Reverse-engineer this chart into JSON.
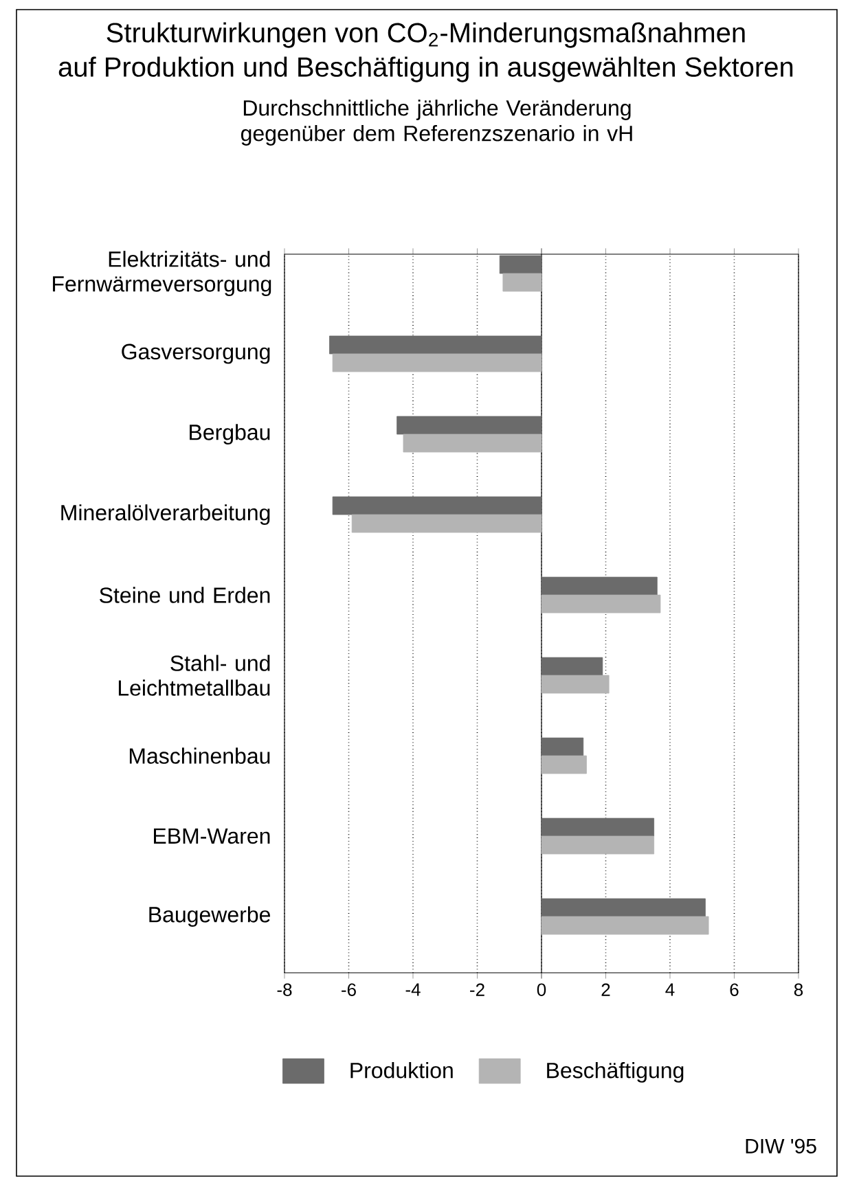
{
  "chart_data": {
    "type": "bar",
    "orientation": "horizontal",
    "title": "Strukturwirkungen von CO$_{2}$-Minderungsmaßnahmen auf Produktion und Beschäftigung in ausgewählten Sektoren",
    "subtitle": "Durchschnittliche jährliche Veränderung gegenüber dem Referenzszenario in vH",
    "categories": [
      "Elektrizitäts- und Fernwärmeversorgung",
      "Gasversorgung",
      "Bergbau",
      "Mineralölverarbeitung",
      "Steine und Erden",
      "Stahl- und Leichtmetallbau",
      "Maschinenbau",
      "EBM-Waren",
      "Baugewerbe"
    ],
    "series": [
      {
        "name": "Produktion",
        "color": "#6b6b6b",
        "values": [
          -1.3,
          -6.6,
          -4.5,
          -6.5,
          3.6,
          1.9,
          1.3,
          3.5,
          5.1
        ]
      },
      {
        "name": "Beschäftigung",
        "color": "#b4b4b4",
        "values": [
          -1.2,
          -6.5,
          -4.3,
          -5.9,
          3.7,
          2.1,
          1.4,
          3.5,
          5.2
        ]
      }
    ],
    "xlim": [
      -8,
      8
    ],
    "xticks": [
      -8,
      -6,
      -4,
      -2,
      0,
      2,
      4,
      6,
      8
    ],
    "grid": "x",
    "legend": "bottom",
    "annotations": [
      "DIW '95"
    ]
  }
}
